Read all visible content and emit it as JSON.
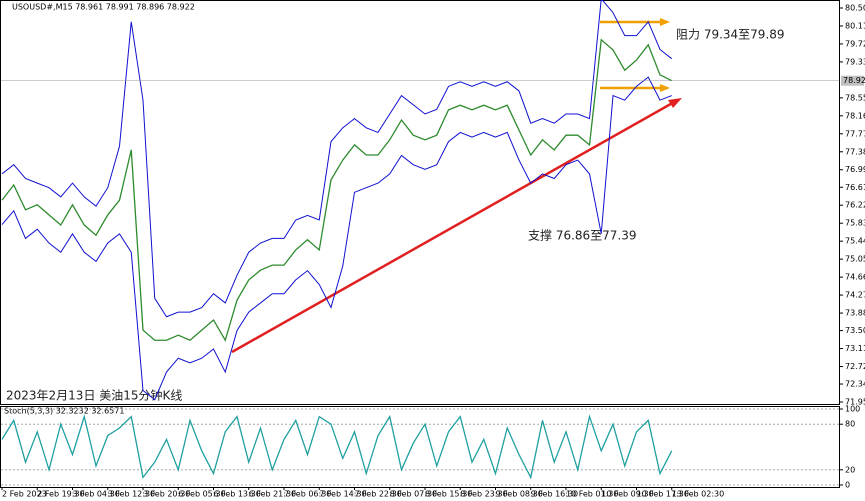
{
  "chart_data": [
    {
      "type": "line",
      "title": "USOUSD#,M15  78.961 78.991 78.896 78.922",
      "annotations": [
        "阻力 79.34至79.89",
        "支撑 76.86至77.39",
        "2023年2月13日 美油15分钟K线"
      ],
      "last_price": 78.922,
      "categories": [
        "2 Feb 2023",
        null,
        null,
        "2 Feb 19:30",
        null,
        null,
        "3 Feb 04:30",
        null,
        null,
        "3 Feb 12:30",
        null,
        null,
        "3 Feb 20:30",
        null,
        null,
        "6 Feb 05:30",
        null,
        null,
        "6 Feb 13:30",
        null,
        null,
        "6 Feb 21:30",
        null,
        null,
        "7 Feb 06:30",
        null,
        null,
        "7 Feb 14:30",
        null,
        null,
        "7 Feb 22:30",
        null,
        null,
        "8 Feb 07:30",
        null,
        null,
        "8 Feb 15:30",
        null,
        null,
        "8 Feb 23:30",
        null,
        null,
        "9 Feb 08:30",
        null,
        null,
        "9 Feb 16:30",
        null,
        null,
        "10 Feb 01:30",
        null,
        null,
        "10 Feb 09:30",
        null,
        null,
        "10 Feb 17:30",
        null,
        null,
        "13 Feb 02:30"
      ],
      "series": [
        {
          "color": "#2e8b2e",
          "values": [
            76.33,
            76.66,
            76.12,
            76.23,
            76.01,
            75.79,
            76.23,
            75.79,
            75.57,
            76.01,
            76.33,
            77.42,
            73.51,
            73.29,
            73.29,
            73.4,
            73.29,
            73.51,
            73.73,
            73.29,
            74.16,
            74.6,
            74.81,
            74.92,
            74.92,
            75.25,
            75.47,
            75.25,
            76.77,
            77.2,
            77.53,
            77.31,
            77.31,
            77.64,
            78.07,
            77.74,
            77.64,
            77.74,
            78.29,
            78.39,
            78.29,
            78.39,
            78.29,
            78.39,
            77.85,
            77.31,
            77.64,
            77.42,
            77.74,
            77.74,
            77.53,
            79.81,
            79.59,
            79.15,
            79.37,
            79.7,
            79.05,
            78.922
          ]
        },
        {
          "color": "#1010d0",
          "values": [
            76.9,
            77.1,
            76.8,
            76.7,
            76.6,
            76.4,
            76.7,
            76.4,
            76.2,
            76.6,
            77.5,
            80.2,
            78.5,
            74.2,
            73.8,
            73.9,
            73.9,
            74.0,
            74.3,
            74.1,
            74.7,
            75.2,
            75.4,
            75.5,
            75.5,
            75.9,
            76.0,
            75.9,
            77.6,
            77.9,
            78.1,
            77.9,
            77.8,
            78.2,
            78.6,
            78.4,
            78.2,
            78.3,
            78.8,
            78.9,
            78.8,
            78.9,
            78.8,
            78.9,
            78.7,
            78.0,
            78.1,
            78.0,
            78.2,
            78.2,
            78.1,
            80.7,
            80.4,
            79.9,
            79.9,
            80.2,
            79.6,
            79.4
          ]
        },
        {
          "color": "#1010d0",
          "values": [
            75.8,
            76.1,
            75.5,
            75.7,
            75.4,
            75.2,
            75.6,
            75.2,
            75.0,
            75.4,
            75.6,
            75.2,
            72.2,
            72.0,
            72.6,
            72.9,
            72.8,
            72.9,
            73.1,
            72.6,
            73.5,
            73.9,
            74.1,
            74.3,
            74.3,
            74.6,
            74.8,
            74.5,
            74.0,
            74.9,
            76.5,
            76.6,
            76.7,
            76.9,
            77.3,
            77.1,
            77.0,
            77.1,
            77.6,
            77.8,
            77.7,
            77.8,
            77.7,
            77.8,
            77.2,
            76.7,
            76.9,
            76.8,
            77.1,
            77.2,
            76.9,
            75.6,
            78.6,
            78.5,
            78.8,
            79.0,
            78.5,
            78.6
          ]
        }
      ],
      "ylim": [
        71.95,
        80.5
      ],
      "yticks": [
        {
          "value": 80.5,
          "label": "80.50"
        },
        {
          "value": 80.11,
          "label": "80.110"
        },
        {
          "value": 79.72,
          "label": "79.720"
        },
        {
          "value": 79.33,
          "label": "79.330"
        },
        {
          "value": 78.55,
          "label": "78.550"
        },
        {
          "value": 78.16,
          "label": "78.160"
        },
        {
          "value": 77.77,
          "label": "77.770"
        },
        {
          "value": 77.38,
          "label": "77.380"
        },
        {
          "value": 76.99,
          "label": "76.990"
        },
        {
          "value": 76.61,
          "label": "76.610"
        },
        {
          "value": 76.22,
          "label": "76.220"
        },
        {
          "value": 75.83,
          "label": "75.830"
        },
        {
          "value": 75.44,
          "label": "75.440"
        },
        {
          "value": 75.05,
          "label": "75.050"
        },
        {
          "value": 74.66,
          "label": "74.660"
        },
        {
          "value": 74.27,
          "label": "74.270"
        },
        {
          "value": 73.88,
          "label": "73.880"
        },
        {
          "value": 73.5,
          "label": "73.500"
        },
        {
          "value": 73.11,
          "label": "73.110"
        },
        {
          "value": 72.72,
          "label": "72.720"
        },
        {
          "value": 72.34,
          "label": "72.340"
        },
        {
          "value": 71.95,
          "label": "71.950"
        }
      ]
    },
    {
      "type": "line",
      "title": "Stoch(5,3,3) 32.3232 32.6571",
      "series": [
        {
          "color": "#20a0a0",
          "values": [
            60,
            85,
            30,
            70,
            20,
            80,
            40,
            90,
            25,
            65,
            75,
            90,
            10,
            30,
            60,
            20,
            85,
            45,
            15,
            70,
            90,
            30,
            75,
            20,
            60,
            85,
            40,
            90,
            80,
            35,
            70,
            15,
            65,
            90,
            20,
            55,
            80,
            25,
            70,
            90,
            30,
            60,
            15,
            75,
            40,
            10,
            85,
            30,
            70,
            20,
            90,
            45,
            80,
            25,
            70,
            85,
            15,
            45
          ]
        }
      ],
      "ylim": [
        0,
        100
      ],
      "yticks": [
        0,
        20,
        80,
        100
      ],
      "grid": true
    }
  ]
}
